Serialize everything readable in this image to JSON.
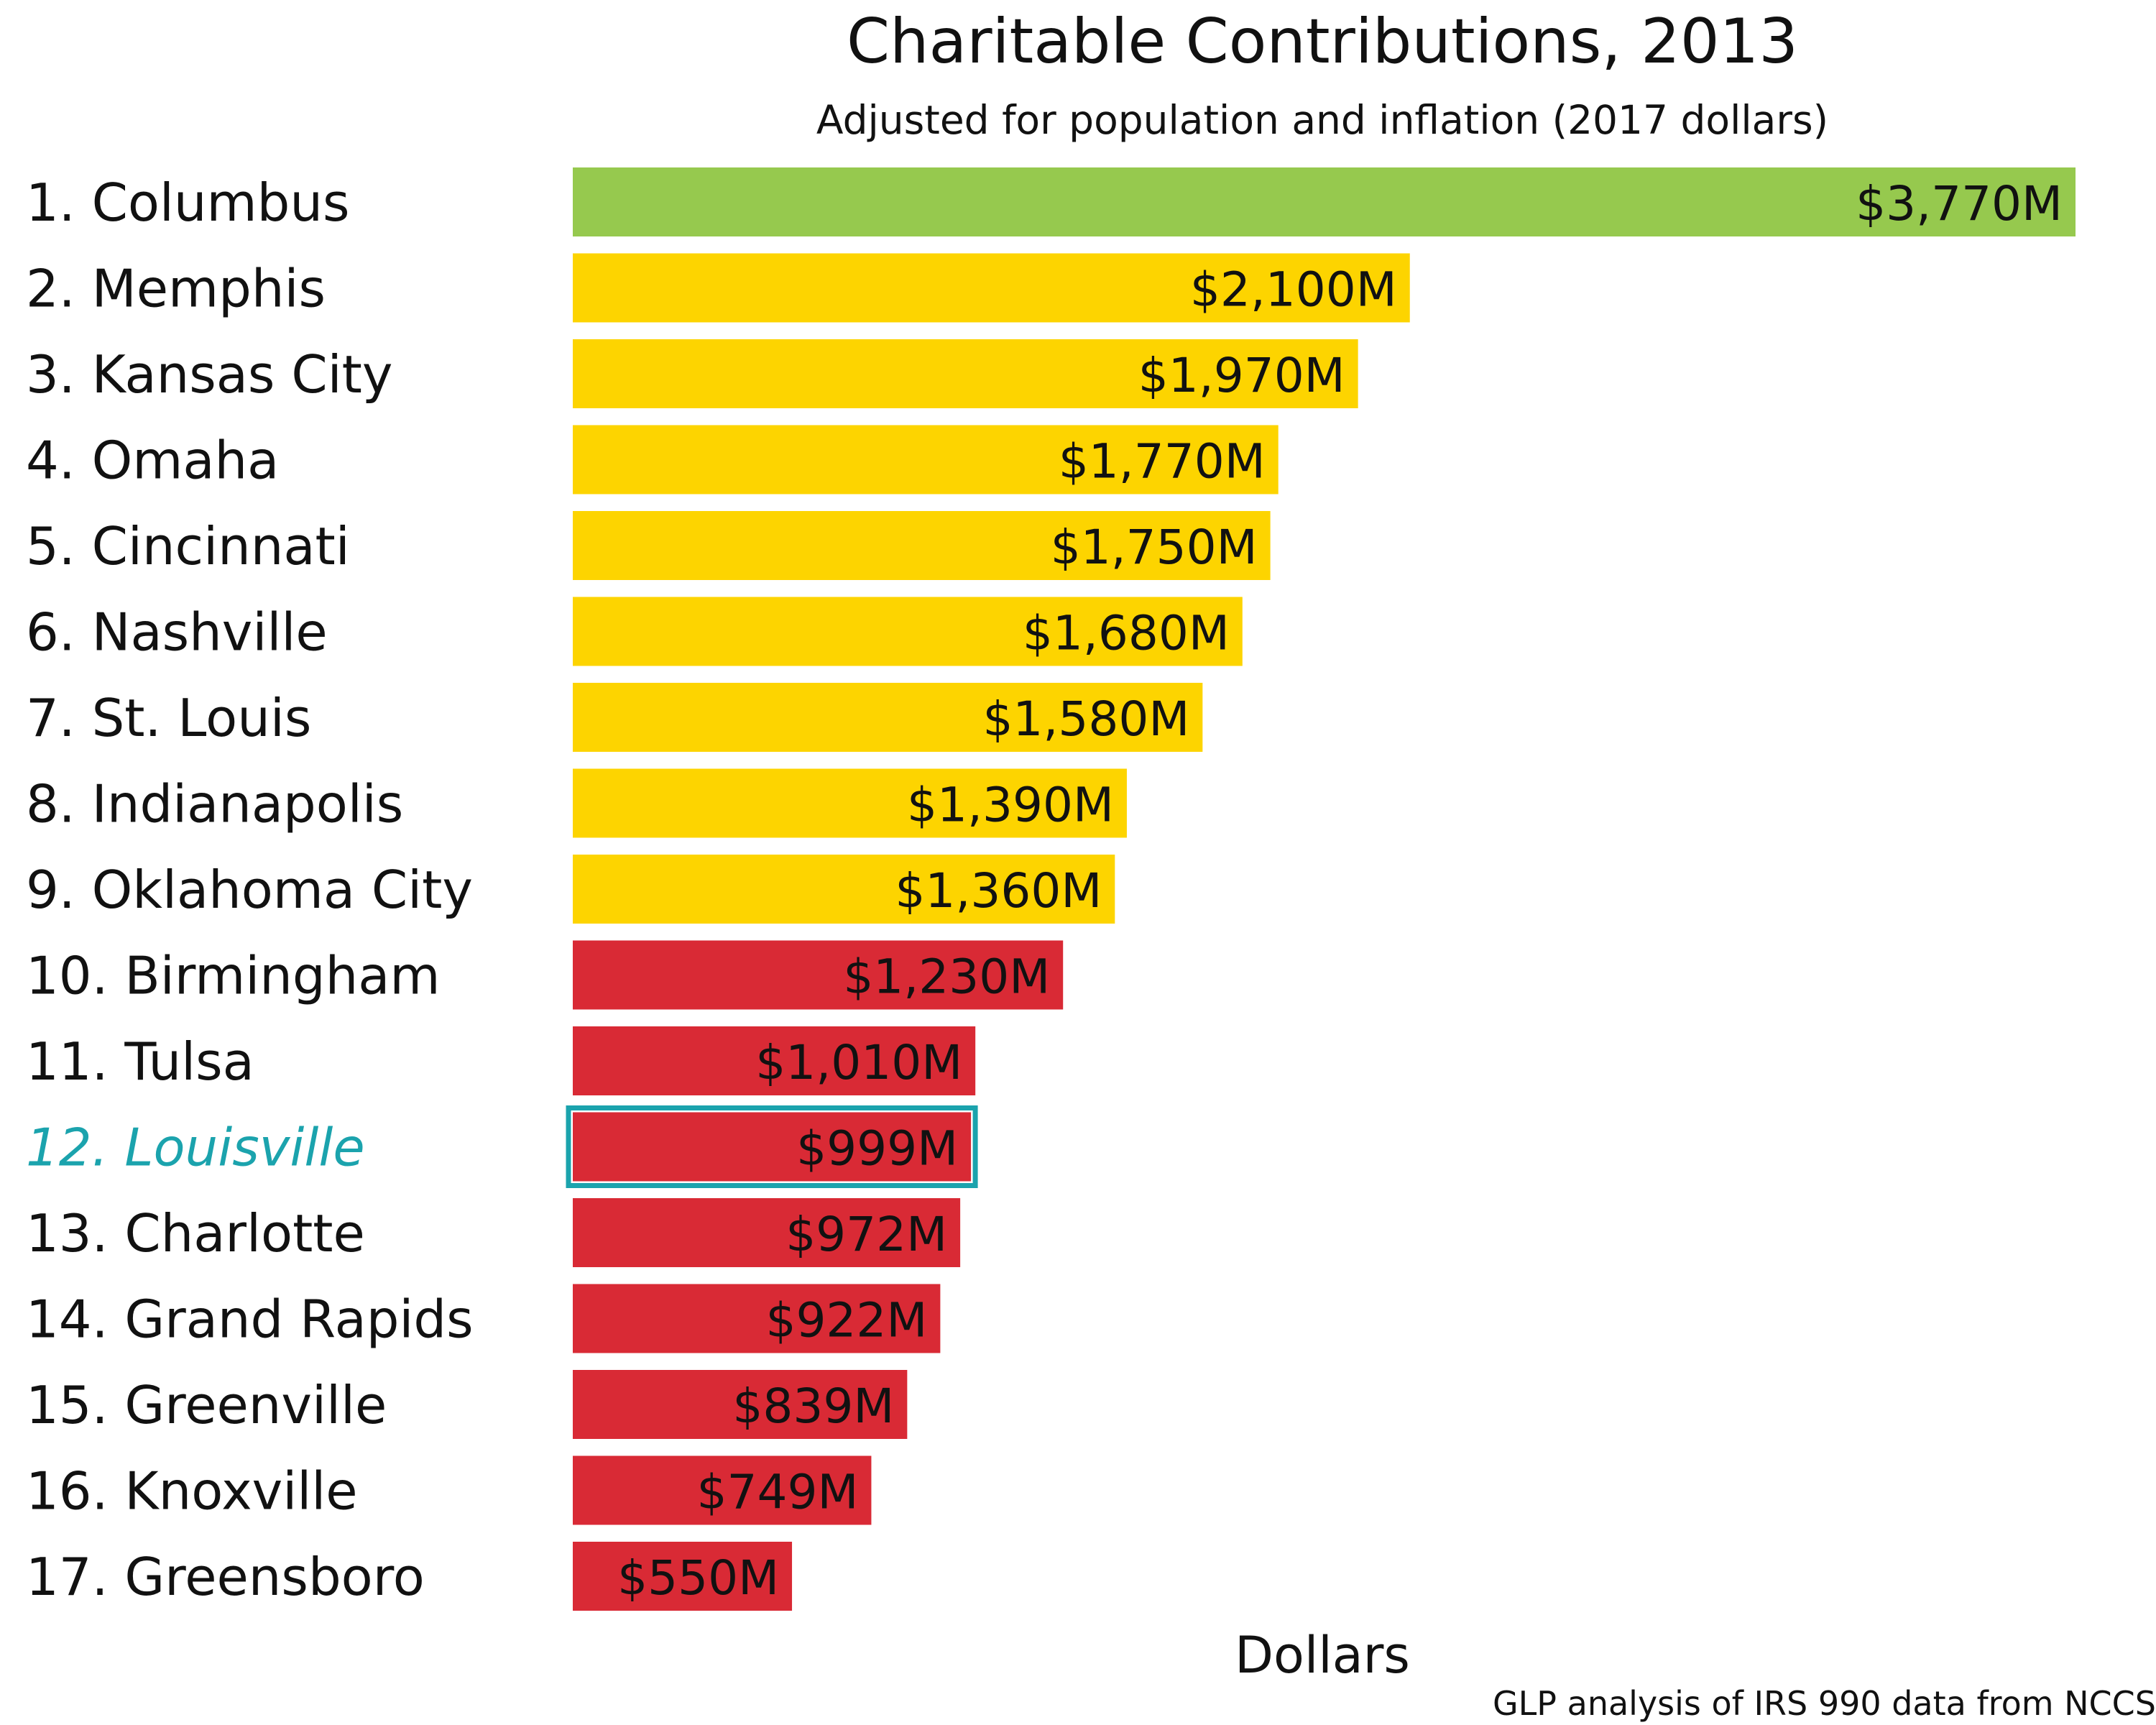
{
  "chart_data": {
    "type": "bar",
    "orientation": "horizontal",
    "title": "Charitable Contributions, 2013",
    "subtitle": "Adjusted for population and inflation (2017 dollars)",
    "xlabel": "Dollars",
    "ylabel": "",
    "source": "GLP analysis of IRS 990 data from NCCS",
    "unit": "$M",
    "xlim": [
      0,
      3770
    ],
    "grid": false,
    "categories": [
      "1. Columbus",
      "2. Memphis",
      "3. Kansas City",
      "4. Omaha",
      "5. Cincinnati",
      "6. Nashville",
      "7. St. Louis",
      "8. Indianapolis",
      "9. Oklahoma City",
      "10. Birmingham",
      "11. Tulsa",
      "12. Louisville",
      "13. Charlotte",
      "14. Grand Rapids",
      "15. Greenville",
      "16. Knoxville",
      "17. Greensboro"
    ],
    "values": [
      3770,
      2100,
      1970,
      1770,
      1750,
      1680,
      1580,
      1390,
      1360,
      1230,
      1010,
      999,
      972,
      922,
      839,
      749,
      550
    ],
    "value_labels": [
      "$3,770M",
      "$2,100M",
      "$1,970M",
      "$1,770M",
      "$1,750M",
      "$1,680M",
      "$1,580M",
      "$1,390M",
      "$1,360M",
      "$1,230M",
      "$1,010M",
      "$999M",
      "$972M",
      "$922M",
      "$839M",
      "$749M",
      "$550M"
    ],
    "tiers": [
      "best",
      "middle",
      "middle",
      "middle",
      "middle",
      "middle",
      "middle",
      "middle",
      "middle",
      "worst",
      "worst",
      "worst",
      "worst",
      "worst",
      "worst",
      "worst",
      "worst"
    ],
    "highlight_category": "12. Louisville",
    "colors": {
      "best": "#96c94e",
      "middle": "#fdd400",
      "worst": "#d92a35",
      "highlight": "#1ba3ad",
      "text": "#111111"
    }
  }
}
